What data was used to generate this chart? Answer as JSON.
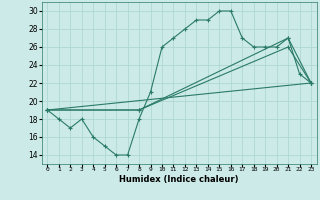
{
  "xlabel": "Humidex (Indice chaleur)",
  "bg_color": "#cceae7",
  "grid_color": "#b0d8d4",
  "line_color": "#2a7a6a",
  "xlim": [
    -0.5,
    23.5
  ],
  "ylim": [
    13,
    31
  ],
  "yticks": [
    14,
    16,
    18,
    20,
    22,
    24,
    26,
    28,
    30
  ],
  "xtick_labels": [
    "0",
    "1",
    "2",
    "3",
    "4",
    "5",
    "6",
    "7",
    "8",
    "9",
    "10",
    "11",
    "12",
    "13",
    "14",
    "15",
    "16",
    "17",
    "18",
    "19",
    "20",
    "21",
    "22",
    "23"
  ],
  "xtick_positions": [
    0,
    1,
    2,
    3,
    4,
    5,
    6,
    7,
    8,
    9,
    10,
    11,
    12,
    13,
    14,
    15,
    16,
    17,
    18,
    19,
    20,
    21,
    22,
    23
  ],
  "line1_x": [
    0,
    1,
    2,
    3,
    4,
    5,
    6,
    7,
    8,
    9,
    10,
    11,
    12,
    13,
    14,
    15,
    16,
    17,
    18,
    19,
    20,
    21,
    22,
    23
  ],
  "line1_y": [
    19,
    18,
    17,
    18,
    16,
    15,
    14,
    14,
    18,
    21,
    26,
    27,
    28,
    29,
    29,
    30,
    30,
    27,
    26,
    26,
    26,
    27,
    23,
    22
  ],
  "line2_x": [
    0,
    23
  ],
  "line2_y": [
    19,
    22
  ],
  "line3_x": [
    0,
    8,
    21,
    23
  ],
  "line3_y": [
    19,
    19,
    27,
    22
  ],
  "line4_x": [
    0,
    8,
    21,
    23
  ],
  "line4_y": [
    19,
    19,
    26,
    22
  ]
}
